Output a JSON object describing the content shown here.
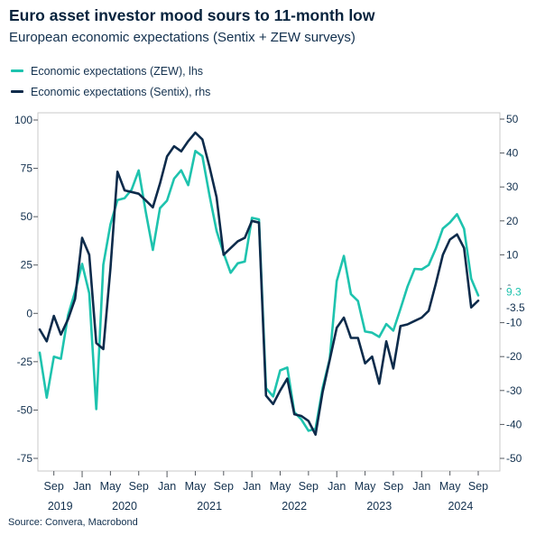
{
  "header": {
    "title": "Euro asset investor mood sours to 11-month low",
    "subtitle": "European economic expectations (Sentix + ZEW surveys)"
  },
  "legend": [
    {
      "label": "Economic expectations (ZEW), lhs",
      "color": "#1ec3ae"
    },
    {
      "label": "Economic expectations (Sentix), rhs",
      "color": "#0d2b4b"
    }
  ],
  "source": "Source: Convera, Macrobond",
  "palette": {
    "teal": "#1ec3ae",
    "navy": "#0d2b4b",
    "frame": "#c9c9c9",
    "tick": "#555a60",
    "text": "#12304e"
  },
  "chart_data": {
    "type": "line",
    "title": "Euro asset investor mood sours to 11-month low",
    "subtitle": "European economic expectations (Sentix + ZEW surveys)",
    "grid": false,
    "legend_position": "top-left",
    "months": [
      "2019-07",
      "2019-08",
      "2019-09",
      "2019-10",
      "2019-11",
      "2019-12",
      "2020-01",
      "2020-02",
      "2020-03",
      "2020-04",
      "2020-05",
      "2020-06",
      "2020-07",
      "2020-08",
      "2020-09",
      "2020-10",
      "2020-11",
      "2020-12",
      "2021-01",
      "2021-02",
      "2021-03",
      "2021-04",
      "2021-05",
      "2021-06",
      "2021-07",
      "2021-08",
      "2021-09",
      "2021-10",
      "2021-11",
      "2021-12",
      "2022-01",
      "2022-02",
      "2022-03",
      "2022-04",
      "2022-05",
      "2022-06",
      "2022-07",
      "2022-08",
      "2022-09",
      "2022-10",
      "2022-11",
      "2022-12",
      "2023-01",
      "2023-02",
      "2023-03",
      "2023-04",
      "2023-05",
      "2023-06",
      "2023-07",
      "2023-08",
      "2023-09",
      "2023-10",
      "2023-11",
      "2023-12",
      "2024-01",
      "2024-02",
      "2024-03",
      "2024-04",
      "2024-05",
      "2024-06",
      "2024-07",
      "2024-08",
      "2024-09"
    ],
    "series": [
      {
        "name": "Economic expectations (ZEW), lhs",
        "axis": "left",
        "color": "#1ec3ae",
        "values": [
          -20.3,
          -43.6,
          -22.4,
          -23.5,
          -1.0,
          11.2,
          25.6,
          10.4,
          -49.5,
          25.2,
          46.0,
          58.6,
          59.6,
          64.0,
          73.9,
          52.3,
          32.8,
          54.4,
          58.3,
          69.6,
          74.0,
          66.3,
          84.0,
          81.3,
          61.2,
          42.7,
          31.1,
          21.0,
          25.9,
          26.8,
          49.4,
          48.6,
          -38.7,
          -43.0,
          -29.5,
          -28.0,
          -51.1,
          -54.9,
          -60.7,
          -59.7,
          -38.7,
          -23.6,
          16.7,
          29.7,
          10.0,
          6.4,
          -9.4,
          -10.0,
          -12.2,
          -5.5,
          -8.9,
          2.3,
          13.8,
          23.0,
          22.7,
          25.0,
          33.5,
          43.9,
          47.0,
          51.3,
          43.7,
          17.9,
          9.3
        ]
      },
      {
        "name": "Economic expectations (Sentix), rhs",
        "axis": "right",
        "color": "#0d2b4b",
        "values": [
          -12,
          -15.5,
          -8,
          -13.5,
          -9,
          -3,
          15,
          10,
          -16,
          -17.8,
          6,
          34.5,
          29,
          28.5,
          28,
          26,
          24,
          31,
          39,
          42,
          40.5,
          43.5,
          46,
          44,
          36,
          27,
          10,
          12,
          14,
          15,
          20,
          19.5,
          -31.5,
          -34,
          -30,
          -26.5,
          -37,
          -37.5,
          -39,
          -43,
          -30.5,
          -21,
          -11.5,
          -8.5,
          -14.5,
          -14.5,
          -22,
          -20,
          -28,
          -15.5,
          -23.5,
          -11,
          -10.5,
          -9.5,
          -8.5,
          -6.5,
          1.5,
          10,
          14.5,
          16,
          12,
          -5.5,
          -3.5
        ]
      }
    ],
    "left_axis": {
      "label": "lhs",
      "ticks": [
        100,
        75,
        50,
        25,
        0,
        -25,
        -50,
        -75
      ],
      "range": [
        -81,
        104
      ]
    },
    "right_axis": {
      "label": "rhs",
      "ticks": [
        50,
        40,
        30,
        20,
        10,
        0,
        -10,
        -20,
        -30,
        -40,
        -50
      ],
      "range": [
        -53,
        52
      ]
    },
    "x_ticks": [
      {
        "label": "Sep",
        "i": 2,
        "major": false
      },
      {
        "label": "Jan",
        "i": 6,
        "major": true
      },
      {
        "label": "May",
        "i": 10,
        "major": false
      },
      {
        "label": "Sep",
        "i": 14,
        "major": false
      },
      {
        "label": "Jan",
        "i": 18,
        "major": true
      },
      {
        "label": "May",
        "i": 22,
        "major": false
      },
      {
        "label": "Sep",
        "i": 26,
        "major": false
      },
      {
        "label": "Jan",
        "i": 30,
        "major": true
      },
      {
        "label": "May",
        "i": 34,
        "major": false
      },
      {
        "label": "Sep",
        "i": 38,
        "major": false
      },
      {
        "label": "Jan",
        "i": 42,
        "major": true
      },
      {
        "label": "May",
        "i": 46,
        "major": false
      },
      {
        "label": "Sep",
        "i": 50,
        "major": false
      },
      {
        "label": "Jan",
        "i": 54,
        "major": true
      },
      {
        "label": "May",
        "i": 58,
        "major": false
      },
      {
        "label": "Sep",
        "i": 62,
        "major": false
      }
    ],
    "years": [
      {
        "label": "2019",
        "center_i": 2.9
      },
      {
        "label": "2020",
        "center_i": 12
      },
      {
        "label": "2021",
        "center_i": 24
      },
      {
        "label": "2022",
        "center_i": 36
      },
      {
        "label": "2023",
        "center_i": 48
      },
      {
        "label": "2024",
        "center_i": 59.5
      }
    ],
    "end_labels": [
      {
        "text": "9.3",
        "value": 9.3,
        "axis": "left",
        "color": "#1ec3ae",
        "dy": -4
      },
      {
        "text": "-3.5",
        "value": -3.5,
        "axis": "right",
        "color": "#0d2b4b",
        "dy": 8
      }
    ]
  }
}
